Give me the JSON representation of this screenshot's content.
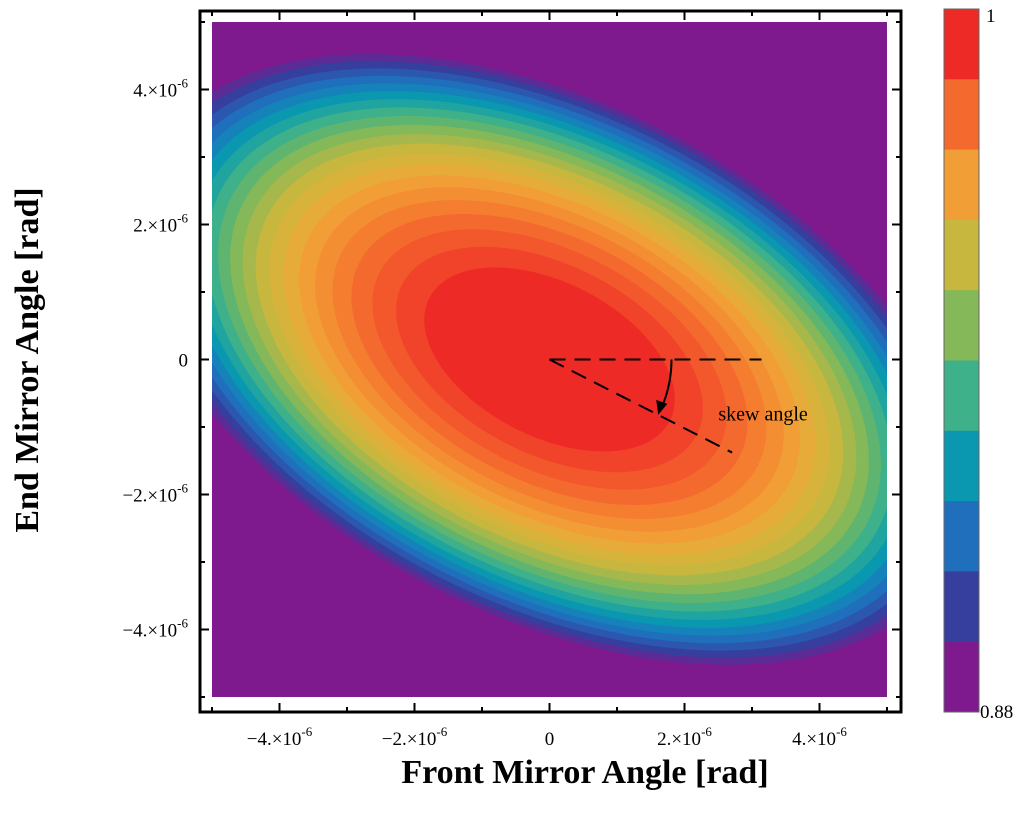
{
  "chart_data": {
    "type": "contour",
    "title": "",
    "xlabel": "Front Mirror Angle [rad]",
    "ylabel": "End Mirror Angle [rad]",
    "xlim": [
      -5e-06,
      5e-06
    ],
    "ylim": [
      -5e-06,
      5e-06
    ],
    "x_ticks": [
      {
        "value": -4e-06,
        "label": "−4.×10",
        "exp": "-6"
      },
      {
        "value": -2e-06,
        "label": "−2.×10",
        "exp": "-6"
      },
      {
        "value": 0,
        "label": "0",
        "exp": ""
      },
      {
        "value": 2e-06,
        "label": "2.×10",
        "exp": "-6"
      },
      {
        "value": 4e-06,
        "label": "4.×10",
        "exp": "-6"
      }
    ],
    "y_ticks": [
      {
        "value": 4e-06,
        "label": "4.×10",
        "exp": "-6"
      },
      {
        "value": 2e-06,
        "label": "2.×10",
        "exp": "-6"
      },
      {
        "value": 0,
        "label": "0",
        "exp": ""
      },
      {
        "value": -2e-06,
        "label": "−2.×10",
        "exp": "-6"
      },
      {
        "value": -4e-06,
        "label": "−4.×10",
        "exp": "-6"
      }
    ],
    "grid": false,
    "colorbar": {
      "min": 0.88,
      "max": 1,
      "min_label": "0.88",
      "max_label": "1",
      "levels": [
        {
          "from": 0.988,
          "to": 1.0,
          "color": "#ee2a26"
        },
        {
          "from": 0.976,
          "to": 0.988,
          "color": "#f46a2e"
        },
        {
          "from": 0.964,
          "to": 0.976,
          "color": "#f29e36"
        },
        {
          "from": 0.952,
          "to": 0.964,
          "color": "#c7b73e"
        },
        {
          "from": 0.94,
          "to": 0.952,
          "color": "#84b858"
        },
        {
          "from": 0.928,
          "to": 0.94,
          "color": "#3eb08a"
        },
        {
          "from": 0.916,
          "to": 0.928,
          "color": "#0a98b0"
        },
        {
          "from": 0.904,
          "to": 0.916,
          "color": "#1f6fbd"
        },
        {
          "from": 0.892,
          "to": 0.904,
          "color": "#363f9e"
        },
        {
          "from": 0.88,
          "to": 0.892,
          "color": "#7f1a8e"
        }
      ]
    },
    "plot_band_colors": [
      "#ee2a26",
      "#f0432a",
      "#f2582c",
      "#f46a2e",
      "#f47d30",
      "#f38e33",
      "#f29e36",
      "#e7ab3a",
      "#d8b33c",
      "#c7b73e",
      "#a6b84b",
      "#84b858",
      "#5fb570",
      "#3eb08a",
      "#1fa4a0",
      "#0a98b0",
      "#1583b9",
      "#1f6fbd",
      "#2b58ae",
      "#363f9e",
      "#5b2c96",
      "#7f1a8e"
    ],
    "surface": {
      "model": "quadratic",
      "value_at_center": 1,
      "minor_axis_curvature": 0.92,
      "major_axis_curvature": 0.3,
      "skew_angle_deg": 27
    },
    "annotations": [
      {
        "text": "skew angle",
        "x": 2.65e-06,
        "y": -6.5e-07
      }
    ]
  }
}
